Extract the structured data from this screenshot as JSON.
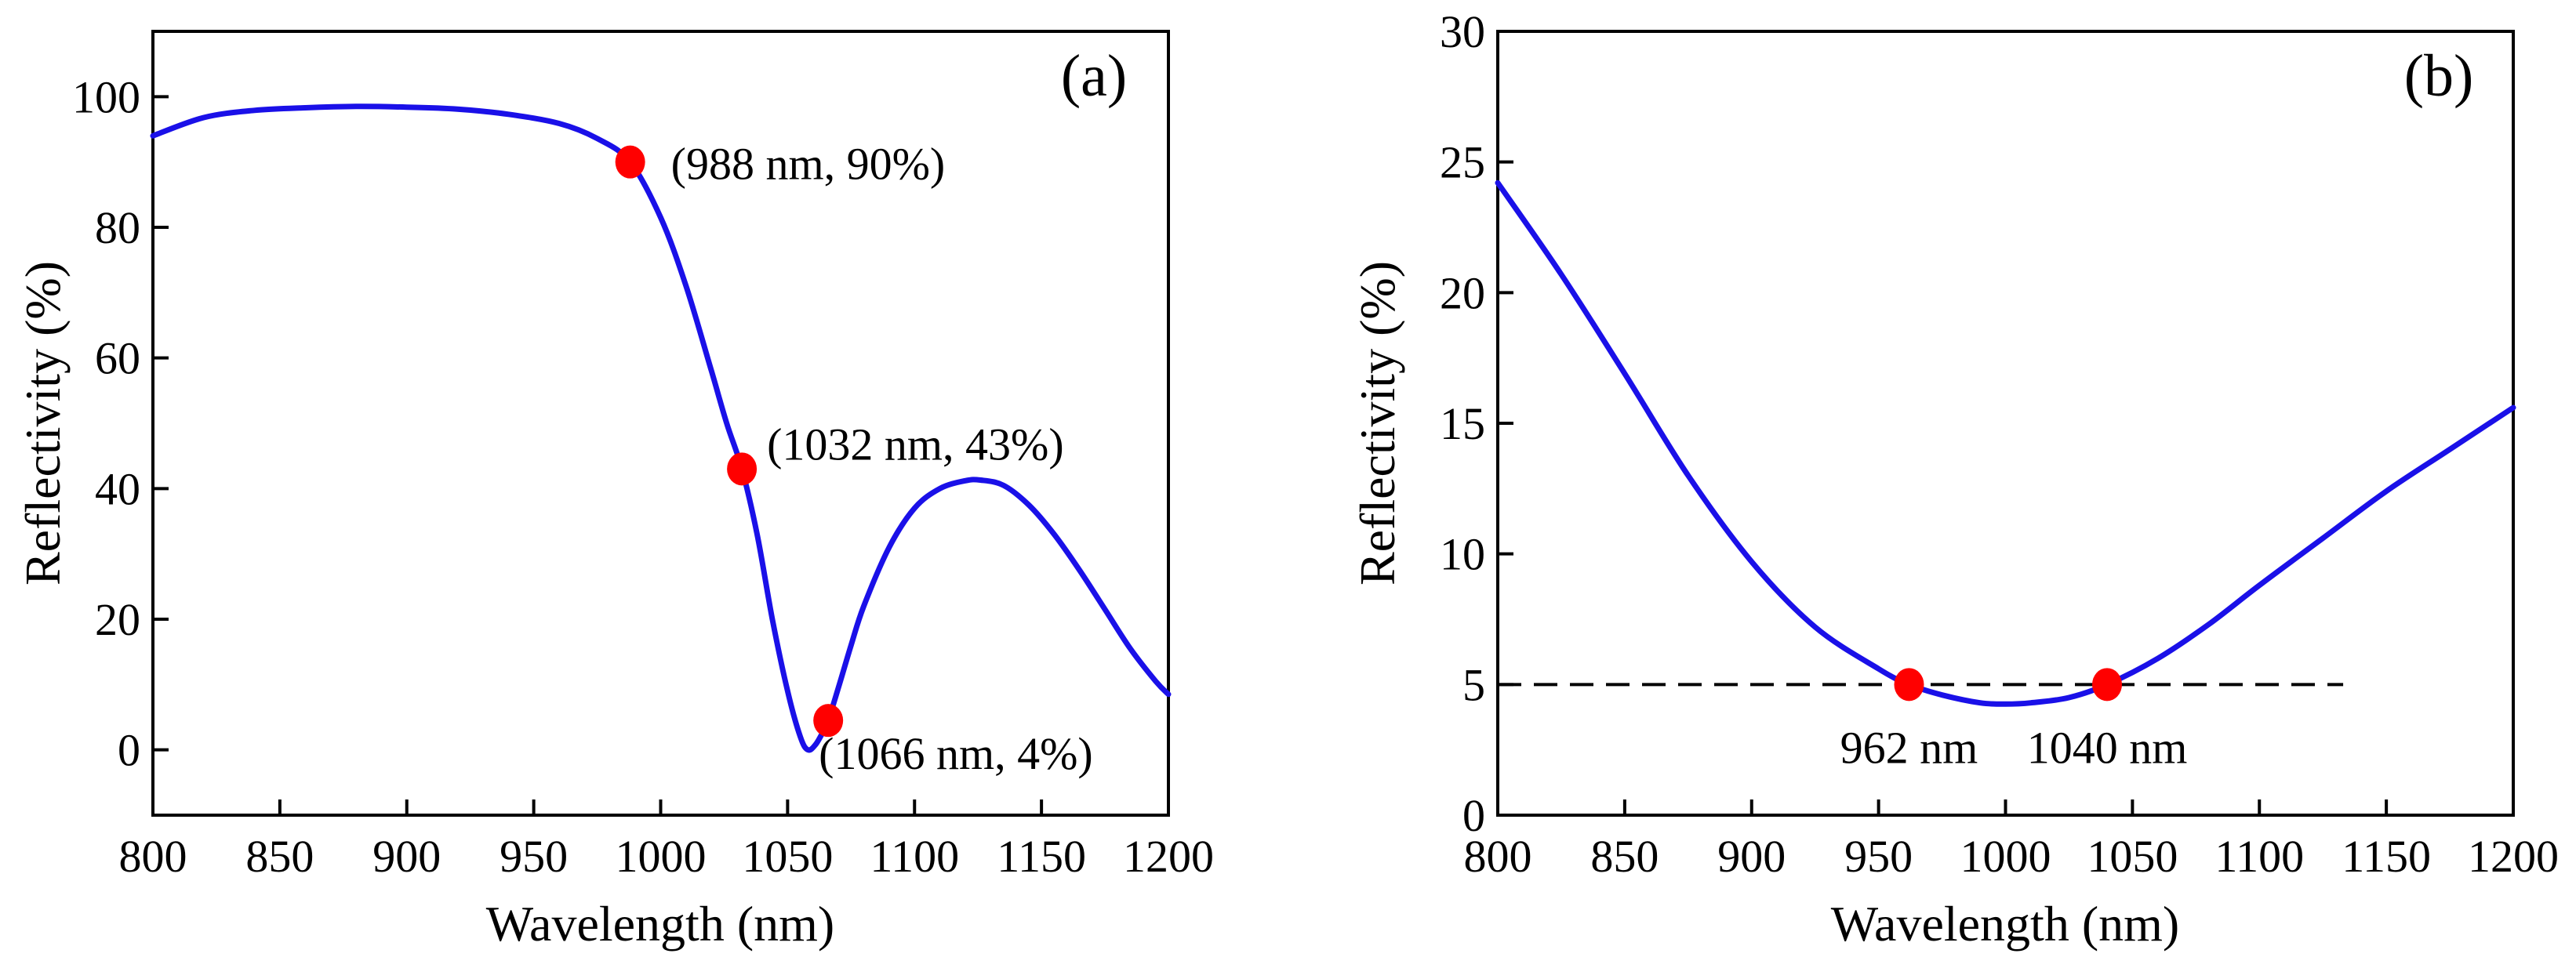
{
  "figure": {
    "background": "#ffffff",
    "line_color": "#1a10e8",
    "marker_color": "#ff0000",
    "dash_color": "#000000"
  },
  "chart_data": [
    {
      "type": "line",
      "panel_label": "(a)",
      "xlabel": "Wavelength (nm)",
      "ylabel": "Reflectivity (%)",
      "xlim": [
        800,
        1200
      ],
      "ylim": [
        -10,
        110
      ],
      "xticks": [
        800,
        850,
        900,
        950,
        1000,
        1050,
        1100,
        1150,
        1200
      ],
      "yticks": [
        0,
        20,
        40,
        60,
        80,
        100
      ],
      "series": [
        {
          "name": "Reflectivity",
          "x": [
            800,
            820,
            840,
            860,
            880,
            900,
            920,
            940,
            960,
            975,
            988,
            1000,
            1010,
            1020,
            1026,
            1032,
            1038,
            1044,
            1050,
            1055,
            1058,
            1061,
            1064,
            1066,
            1070,
            1075,
            1080,
            1090,
            1100,
            1110,
            1120,
            1126,
            1135,
            1145,
            1155,
            1165,
            1175,
            1185,
            1195,
            1200
          ],
          "y": [
            94,
            96.8,
            97.9,
            98.3,
            98.5,
            98.4,
            98.1,
            97.3,
            95.9,
            93.6,
            90,
            81.5,
            71,
            58,
            50,
            43,
            33,
            20,
            9,
            2,
            0,
            0.8,
            2.8,
            4.5,
            9.5,
            16,
            22,
            31,
            37,
            40,
            41.2,
            41.3,
            40.5,
            37.5,
            33,
            27.5,
            21.5,
            15.5,
            10.5,
            8.5
          ]
        }
      ],
      "points": [
        {
          "x": 988,
          "y": 90,
          "label": "(988 nm, 90%)"
        },
        {
          "x": 1032,
          "y": 43,
          "label": "(1032 nm, 43%)"
        },
        {
          "x": 1066,
          "y": 4.5,
          "label": "(1066 nm, 4%)"
        }
      ]
    },
    {
      "type": "line",
      "panel_label": "(b)",
      "xlabel": "Wavelength (nm)",
      "ylabel": "Reflectivity (%)",
      "xlim": [
        800,
        1200
      ],
      "ylim": [
        0,
        30
      ],
      "xticks": [
        800,
        850,
        900,
        950,
        1000,
        1050,
        1100,
        1150,
        1200
      ],
      "yticks": [
        0,
        5,
        10,
        15,
        20,
        25,
        30
      ],
      "series": [
        {
          "name": "Reflectivity",
          "x": [
            800,
            825,
            850,
            875,
            900,
            925,
            950,
            962,
            975,
            990,
            1000,
            1010,
            1025,
            1040,
            1060,
            1080,
            1100,
            1125,
            1150,
            1175,
            1200
          ],
          "y": [
            24.2,
            20.7,
            16.9,
            13.0,
            9.7,
            7.2,
            5.6,
            5.0,
            4.6,
            4.3,
            4.25,
            4.3,
            4.5,
            5.0,
            6.0,
            7.3,
            8.8,
            10.6,
            12.4,
            14.0,
            15.6
          ]
        }
      ],
      "reference_line": {
        "y": 5,
        "x_start": 800,
        "x_end": 1133,
        "style": "dashed"
      },
      "points": [
        {
          "x": 962,
          "y": 5,
          "label": "962 nm"
        },
        {
          "x": 1040,
          "y": 5,
          "label": "1040 nm"
        }
      ]
    }
  ]
}
